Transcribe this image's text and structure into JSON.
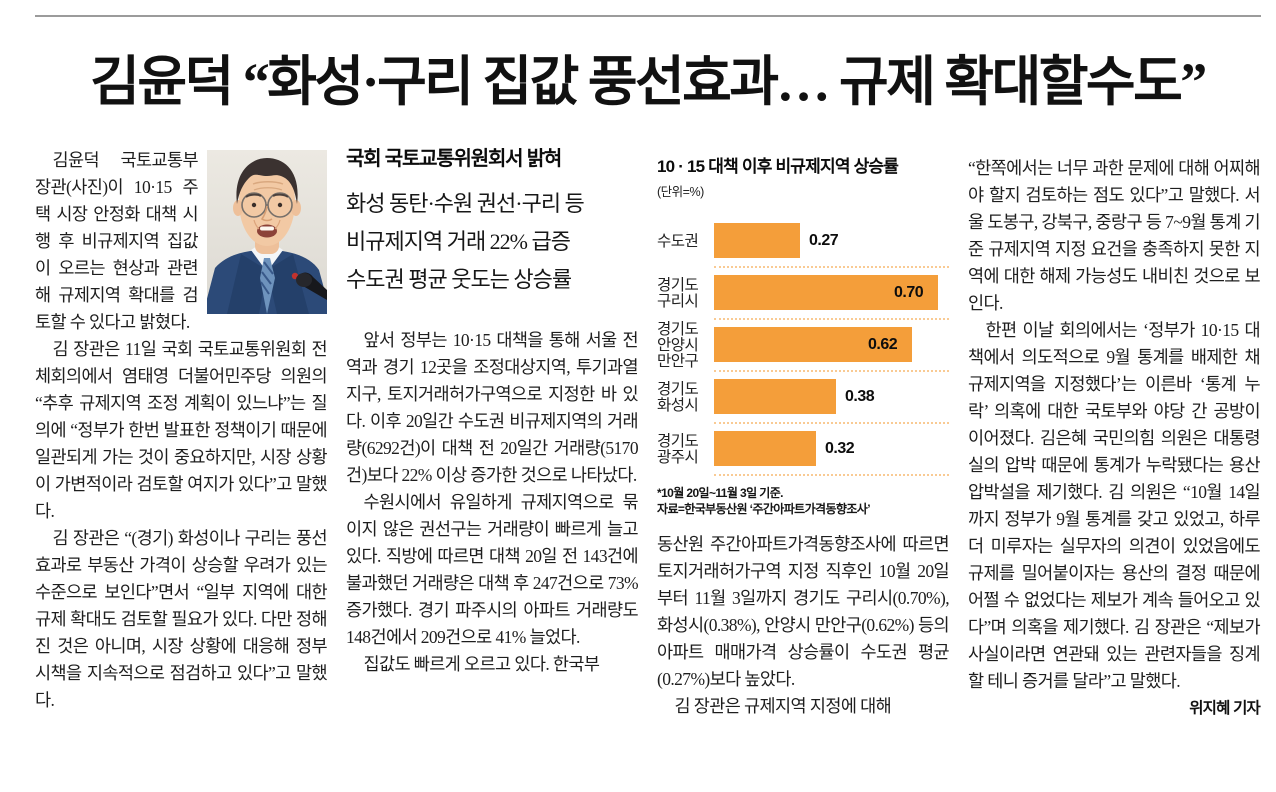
{
  "headline": "김윤덕 “화성·구리 집값 풍선효과… 규제 확대할수도”",
  "photo": {
    "alt_name": "김윤덕 국토교통부 장관 사진"
  },
  "article": {
    "col1": {
      "p1": "김윤덕 국토교통부 장관(사진)이 10·15 주택 시장 안정화 대책 시행 후 비규제지역 집값이 오르는 현상과 관련해 규제지역 확대를 검토할 수 있다고 밝혔다.",
      "p2": "김 장관은 11일 국회 국토교통위원회 전체회의에서 염태영 더불어민주당 의원의 “추후 규제지역 조정 계획이 있느냐”는 질의에 “정부가 한번 발표한 정책이기 때문에 일관되게 가는 것이 중요하지만, 시장 상황이 가변적이라 검토할 여지가 있다”고 말했다.",
      "p3": "김 장관은 “(경기) 화성이나 구리는 풍선효과로 부동산 가격이 상승할 우려가 있는 수준으로 보인다”면서 “일부 지역에 대한 규제 확대도 검토할 필요가 있다. 다만 정해진 것은 아니며, 시장 상황에 대응해 정부 시책을 지속적으로 점검하고 있다”고 말했다."
    },
    "col2": {
      "subhead_bold": "국회 국토교통위원회서 밝혀",
      "subhead_lines": [
        "화성 동탄·수원 권선·구리 등",
        "비규제지역 거래 22% 급증",
        "수도권 평균 웃도는 상승률"
      ],
      "p1": "앞서 정부는 10·15 대책을 통해 서울 전역과 경기 12곳을 조정대상지역, 투기과열지구, 토지거래허가구역으로 지정한 바 있다. 이후 20일간 수도권 비규제지역의 거래량(6292건)이 대책 전 20일간 거래량(5170건)보다 22% 이상 증가한 것으로 나타났다.",
      "p2": "수원시에서 유일하게 규제지역으로 묶이지 않은 권선구는 거래량이 빠르게 늘고 있다. 직방에 따르면 대책 20일 전 143건에 불과했던 거래량은 대책 후 247건으로 73% 증가했다. 경기 파주시의 아파트 거래량도 148건에서 209건으로 41% 늘었다.",
      "p3": "집값도 빠르게 오르고 있다. 한국부"
    },
    "col3": {
      "p1": "동산원 주간아파트가격동향조사에 따르면 토지거래허가구역 지정 직후인 10월 20일부터 11월 3일까지 경기도 구리시(0.70%), 화성시(0.38%), 안양시 만안구(0.62%) 등의 아파트 매매가격 상승률이 수도권 평균(0.27%)보다 높았다.",
      "p2": "김 장관은 규제지역 지정에 대해"
    },
    "col4": {
      "p1": "“한쪽에서는 너무 과한 문제에 대해 어찌해야 할지 검토하는 점도 있다”고 말했다. 서울 도봉구, 강북구, 중랑구 등 7~9월 통계 기준 규제지역 지정 요건을 충족하지 못한 지역에 대한 해제 가능성도 내비친 것으로 보인다.",
      "p2": "한편 이날 회의에서는 ‘정부가 10·15 대책에서 의도적으로 9월 통계를 배제한 채 규제지역을 지정했다’는 이른바 ‘통계 누락’ 의혹에 대한 국토부와 야당 간 공방이 이어졌다. 김은혜 국민의힘 의원은 대통령실의 압박 때문에 통계가 누락됐다는 용산 압박설을 제기했다. 김 의원은 “10월 14일까지 정부가 9월 통계를 갖고 있었고, 하루 더 미루자는 실무자의 의견이 있었음에도 규제를 밀어붙이자는 용산의 결정 때문에 어쩔 수 없었다는 제보가 계속 들어오고 있다”며 의혹을 제기했다. 김 장관은 “제보가 사실이라면 연관돼 있는 관련자들을 징계할 테니 증거를 달라”고 말했다.",
      "byline": "위지혜 기자"
    }
  },
  "chart_data": {
    "type": "bar",
    "orientation": "horizontal",
    "title": "10 · 15 대책 이후 비규제지역 상승률",
    "unit_label": "(단위=%)",
    "categories": [
      "수도권",
      "경기도\n구리시",
      "경기도\n안양시\n만안구",
      "경기도\n화성시",
      "경기도\n광주시"
    ],
    "values": [
      0.27,
      0.7,
      0.62,
      0.38,
      0.32
    ],
    "value_labels": [
      "0.27",
      "0.70",
      "0.62",
      "0.38",
      "0.32"
    ],
    "label_inside": [
      false,
      true,
      true,
      false,
      false
    ],
    "xlim": [
      0,
      0.75
    ],
    "bar_color": "#F49E3A",
    "grid": "dotted row separators",
    "legend_position": "none",
    "footnotes": [
      "*10월 20일~11월 3일 기준.",
      "자료=한국부동산원 ‘주간아파트가격동향조사’"
    ]
  }
}
